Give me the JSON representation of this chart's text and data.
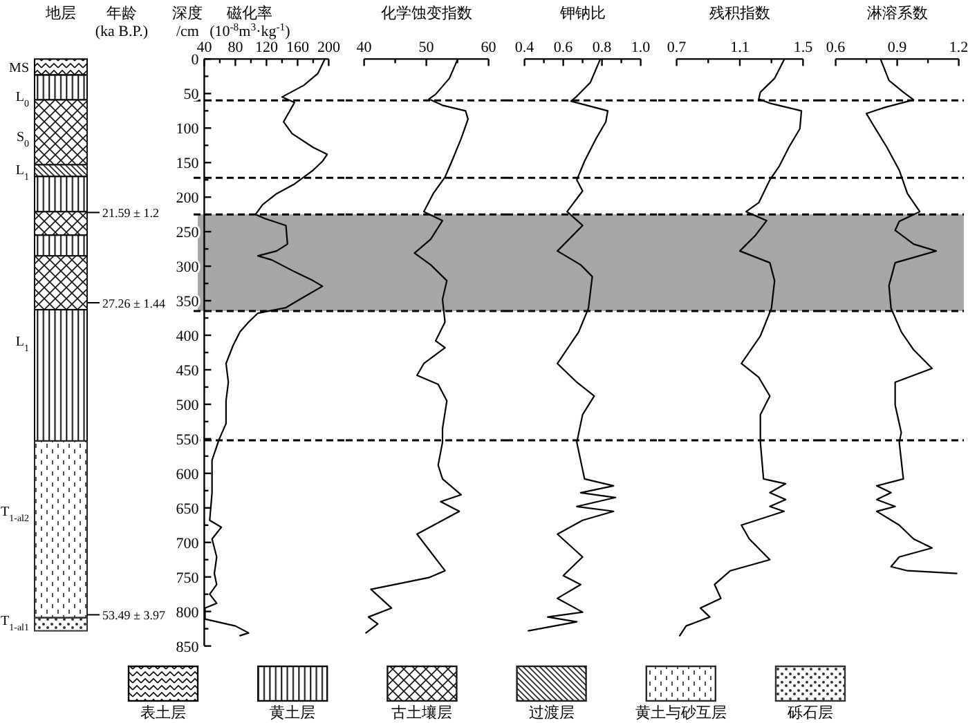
{
  "chart_data": [
    {
      "type": "bar",
      "title": "地层",
      "categories": [
        null
      ],
      "stacked": true,
      "ylim": [
        850,
        0
      ],
      "tick_labels": false,
      "legend": "bottom",
      "series": [
        {
          "name": "表土层",
          "color": "#000000",
          "values": [
            23
          ]
        },
        {
          "name": "黄土层",
          "color": "#0a0a0a",
          "values": [
            36
          ]
        },
        {
          "name": "古土壤层",
          "color": "#141414",
          "values": [
            94
          ]
        },
        {
          "name": "过渡层",
          "color": "#1e1e1e",
          "values": [
            17
          ]
        },
        {
          "color": "#0a0a0a",
          "values": [
            51
          ]
        },
        {
          "color": "#141414",
          "values": [
            34
          ]
        },
        {
          "color": "#0a0a0a",
          "values": [
            30
          ]
        },
        {
          "color": "#141414",
          "values": [
            78
          ]
        },
        {
          "color": "#0a0a0a",
          "values": [
            190
          ]
        },
        {
          "name": "黄土与砂互层",
          "color": "#282828",
          "values": [
            256
          ]
        },
        {
          "name": "砾石层",
          "color": "#323232",
          "values": [
            19
          ]
        }
      ],
      "annotations": [
        "年龄\n(ka B.P.)",
        "MS",
        "L$_{0}$",
        "S$_{0}$",
        "L$_{1}$",
        "L$_{1}$",
        "T$_{1-al2}$",
        "T$_{1-al1}$",
        "21.59 ± 1.2",
        "27.26 ± 1.44",
        "53.49 ± 3.97"
      ]
    },
    {
      "type": "line",
      "xlabel": "磁化率\n(10$^{-8}$m$^{3}$·kg$^{-1}$)",
      "ylabel": "深度\n/cm",
      "xlim": [
        40,
        200
      ],
      "xticks": [
        40,
        {
          "value": 60,
          "label": null
        },
        80,
        {
          "value": 100,
          "label": null
        },
        120,
        {
          "value": 140,
          "label": null
        },
        160,
        {
          "value": 180,
          "label": null
        },
        200
      ],
      "ylim": [
        850,
        0
      ],
      "yticks": [
        0,
        {
          "value": 25,
          "label": null
        },
        50,
        {
          "value": 75,
          "label": null
        },
        100,
        {
          "value": 125,
          "label": null
        },
        150,
        {
          "value": 175,
          "label": null
        },
        200,
        {
          "value": 225,
          "label": null
        },
        250,
        {
          "value": 275,
          "label": null
        },
        300,
        {
          "value": 325,
          "label": null
        },
        350,
        {
          "value": 375,
          "label": null
        },
        400,
        {
          "value": 425,
          "label": null
        },
        450,
        {
          "value": 475,
          "label": null
        },
        500,
        {
          "value": 525,
          "label": null
        },
        550,
        {
          "value": 575,
          "label": null
        },
        600,
        {
          "value": 625,
          "label": null
        },
        650,
        {
          "value": 675,
          "label": null
        },
        700,
        {
          "value": 725,
          "label": null
        },
        750,
        {
          "value": 775,
          "label": null
        },
        800,
        {
          "value": 825,
          "label": null
        },
        850
      ],
      "ref_lines": [
        {
          "axis": "y",
          "value": 60,
          "line_style": "dashed"
        },
        {
          "axis": "y",
          "value": 172,
          "line_style": "dashed"
        },
        {
          "axis": "y",
          "value": 225,
          "line_style": "dashed"
        },
        {
          "axis": "y",
          "value": 365,
          "line_style": "dashed"
        },
        {
          "axis": "y",
          "value": 552,
          "line_style": "dashed"
        }
      ],
      "bands": [
        {
          "axis": "y",
          "from": 225,
          "to": 365,
          "color": "#a6a6a6"
        }
      ],
      "series": [
        {
          "color": "#000000",
          "x": [
            195,
            186,
            168,
            140,
            156,
            147,
            142,
            153,
            180,
            198,
            192,
            180,
            156,
            133,
            115,
            106,
            118,
            145,
            147,
            133,
            109,
            127,
            156,
            180,
            192,
            163,
            145,
            109,
            97,
            86,
            77,
            68,
            71,
            68,
            68,
            59,
            50,
            50,
            47,
            62,
            50,
            56,
            53,
            56,
            47,
            56,
            41,
            41,
            80,
            97,
            86
          ],
          "values": [
            0,
            21,
            38,
            55,
            63,
            81,
            91,
            108,
            128,
            138,
            148,
            161,
            181,
            195,
            211,
            225,
            231,
            241,
            268,
            278,
            285,
            291,
            308,
            321,
            329,
            348,
            360,
            368,
            381,
            395,
            415,
            441,
            468,
            495,
            528,
            551,
            581,
            628,
            668,
            678,
            695,
            721,
            745,
            761,
            775,
            788,
            795,
            811,
            821,
            831,
            835
          ]
        }
      ]
    },
    {
      "type": "line",
      "xlabel": "化学蚀变指数",
      "xlim": [
        40,
        60
      ],
      "xticks": [
        40,
        {
          "value": 45,
          "label": null
        },
        50,
        {
          "value": 55,
          "label": null
        },
        60
      ],
      "ylim": [
        850,
        0
      ],
      "tick_labels": "x",
      "ref_lines": [
        {
          "axis": "y",
          "value": 60,
          "line_style": "dashed"
        },
        {
          "axis": "y",
          "value": 172,
          "line_style": "dashed"
        },
        {
          "axis": "y",
          "value": 225,
          "line_style": "dashed"
        },
        {
          "axis": "y",
          "value": 365,
          "line_style": "dashed"
        },
        {
          "axis": "y",
          "value": 552,
          "line_style": "dashed"
        }
      ],
      "bands": [
        {
          "axis": "y",
          "from": 225,
          "to": 365,
          "color": "#a6a6a6"
        }
      ],
      "series": [
        {
          "color": "#000000",
          "x": [
            55.0,
            53.7,
            51.5,
            50.4,
            52.6,
            56.3,
            56.7,
            55.6,
            54.1,
            53.0,
            51.1,
            49.6,
            52.6,
            50.7,
            48.1,
            50.7,
            53.3,
            52.6,
            53.0,
            51.5,
            53.0,
            49.6,
            48.5,
            51.9,
            53.3,
            52.6,
            52.6,
            51.9,
            52.6,
            55.6,
            52.3,
            55.3,
            48.5,
            53.0,
            50.4,
            41.1,
            44.4,
            40.7,
            42.2,
            40.3
          ],
          "values": [
            1,
            28,
            51,
            58,
            67,
            75,
            87,
            115,
            148,
            171,
            195,
            221,
            234,
            261,
            281,
            298,
            321,
            348,
            381,
            408,
            418,
            441,
            458,
            471,
            495,
            535,
            555,
            588,
            608,
            631,
            641,
            655,
            688,
            741,
            751,
            768,
            795,
            808,
            818,
            831
          ]
        }
      ]
    },
    {
      "type": "line",
      "xlabel": "钾钠比",
      "xlim": [
        0.4,
        1
      ],
      "xticks": [
        0.4,
        {
          "value": 0.5,
          "label": null
        },
        0.6,
        {
          "value": 0.7,
          "label": null
        },
        0.8,
        {
          "value": 0.9,
          "label": null
        },
        {
          "value": 1,
          "label": "1.0"
        }
      ],
      "ylim": [
        850,
        0
      ],
      "tick_labels": "x",
      "ref_lines": [
        {
          "axis": "y",
          "value": 60,
          "line_style": "dashed"
        },
        {
          "axis": "y",
          "value": 172,
          "line_style": "dashed"
        },
        {
          "axis": "y",
          "value": 225,
          "line_style": "dashed"
        },
        {
          "axis": "y",
          "value": 365,
          "line_style": "dashed"
        },
        {
          "axis": "y",
          "value": 552,
          "line_style": "dashed"
        }
      ],
      "bands": [
        {
          "axis": "y",
          "from": 225,
          "to": 365,
          "color": "#a6a6a6"
        }
      ],
      "series": [
        {
          "color": "#000000",
          "x": [
            0.79,
            0.74,
            0.67,
            0.64,
            0.83,
            0.82,
            0.77,
            0.71,
            0.67,
            0.7,
            0.62,
            0.7,
            0.57,
            0.69,
            0.75,
            0.73,
            0.68,
            0.57,
            0.67,
            0.76,
            0.7,
            0.67,
            0.71,
            0.86,
            0.69,
            0.87,
            0.67,
            0.86,
            0.7,
            0.57,
            0.7,
            0.6,
            0.69,
            0.57,
            0.7,
            0.52,
            0.67,
            0.42
          ],
          "values": [
            1,
            34,
            54,
            61,
            75,
            91,
            115,
            148,
            175,
            191,
            221,
            241,
            278,
            298,
            315,
            361,
            395,
            441,
            468,
            488,
            515,
            555,
            608,
            618,
            628,
            635,
            648,
            655,
            668,
            688,
            721,
            748,
            761,
            781,
            801,
            808,
            815,
            828
          ]
        }
      ]
    },
    {
      "type": "line",
      "xlabel": "残积指数",
      "xlim": [
        0.7,
        1.5
      ],
      "xticks": [
        0.7,
        {
          "value": 0.9,
          "label": null
        },
        1.1,
        {
          "value": 1.3,
          "label": null
        },
        1.5
      ],
      "ylim": [
        850,
        0
      ],
      "tick_labels": "x",
      "ref_lines": [
        {
          "axis": "y",
          "value": 60,
          "line_style": "dashed"
        },
        {
          "axis": "y",
          "value": 172,
          "line_style": "dashed"
        },
        {
          "axis": "y",
          "value": 225,
          "line_style": "dashed"
        },
        {
          "axis": "y",
          "value": 365,
          "line_style": "dashed"
        },
        {
          "axis": "y",
          "value": 552,
          "line_style": "dashed"
        }
      ],
      "bands": [
        {
          "axis": "y",
          "from": 225,
          "to": 365,
          "color": "#a6a6a6"
        }
      ],
      "series": [
        {
          "color": "#000000",
          "x": [
            1.38,
            1.32,
            1.23,
            1.22,
            1.29,
            1.49,
            1.48,
            1.41,
            1.35,
            1.29,
            1.22,
            1.14,
            1.27,
            1.2,
            1.1,
            1.29,
            1.32,
            1.3,
            1.23,
            1.11,
            1.22,
            1.29,
            1.23,
            1.23,
            1.25,
            1.39,
            1.29,
            1.39,
            1.29,
            1.38,
            1.11,
            1.16,
            1.29,
            1.04,
            0.94,
            0.98,
            0.85,
            0.91,
            0.76,
            0.72
          ],
          "values": [
            1,
            28,
            48,
            58,
            64,
            75,
            101,
            128,
            155,
            175,
            208,
            221,
            234,
            255,
            278,
            295,
            321,
            361,
            401,
            441,
            461,
            488,
            515,
            555,
            608,
            615,
            628,
            638,
            648,
            655,
            675,
            695,
            725,
            741,
            761,
            781,
            795,
            808,
            821,
            835
          ]
        }
      ]
    },
    {
      "type": "line",
      "xlabel": "淋溶系数",
      "xlim": [
        0.6,
        1.2
      ],
      "xticks": [
        0.6,
        {
          "value": 0.75,
          "label": null
        },
        0.9,
        {
          "value": 1.05,
          "label": null
        },
        1.2
      ],
      "ylim": [
        850,
        0
      ],
      "tick_labels": "x",
      "ref_lines": [
        {
          "axis": "y",
          "value": 60,
          "line_style": "dashed"
        },
        {
          "axis": "y",
          "value": 172,
          "line_style": "dashed"
        },
        {
          "axis": "y",
          "value": 225,
          "line_style": "dashed"
        },
        {
          "axis": "y",
          "value": 365,
          "line_style": "dashed"
        },
        {
          "axis": "y",
          "value": 552,
          "line_style": "dashed"
        }
      ],
      "bands": [
        {
          "axis": "y",
          "from": 225,
          "to": 365,
          "color": "#a6a6a6"
        }
      ],
      "series": [
        {
          "color": "#000000",
          "x": [
            0.82,
            0.86,
            0.93,
            0.98,
            0.84,
            0.75,
            0.78,
            0.85,
            0.91,
            0.95,
            1.01,
            0.91,
            0.89,
            0.98,
            1.09,
            0.89,
            0.86,
            0.87,
            0.92,
            0.98,
            1.07,
            0.89,
            0.89,
            0.92,
            0.91,
            0.93,
            0.8,
            0.87,
            0.8,
            0.89,
            0.8,
            0.91,
            0.98,
            1.07,
            0.91,
            0.87,
            0.95,
            1.19
          ],
          "values": [
            1,
            31,
            48,
            59,
            70,
            79,
            94,
            128,
            161,
            195,
            221,
            235,
            248,
            268,
            278,
            295,
            328,
            361,
            395,
            421,
            448,
            468,
            501,
            541,
            555,
            608,
            618,
            628,
            638,
            648,
            655,
            675,
            695,
            708,
            721,
            735,
            741,
            745
          ]
        }
      ]
    }
  ]
}
